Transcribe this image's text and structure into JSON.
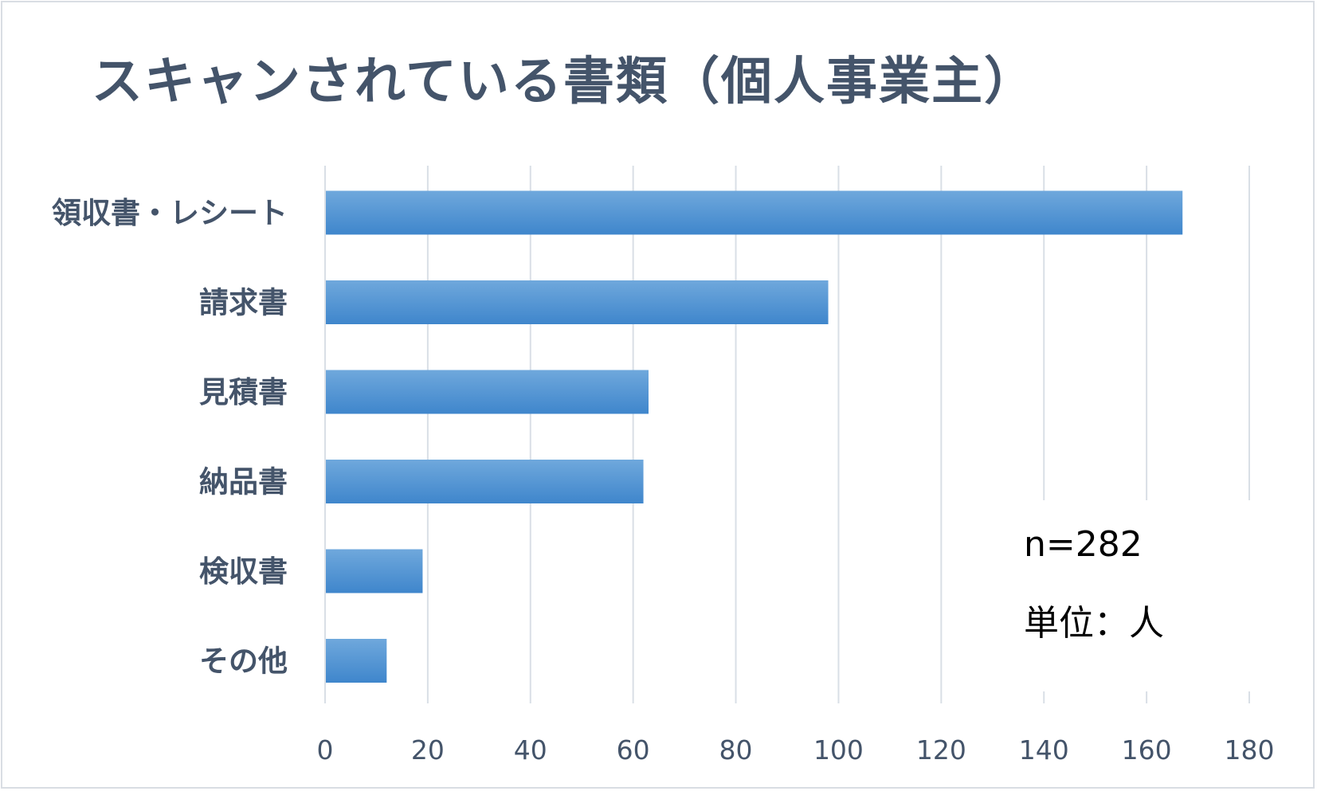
{
  "chart_data": {
    "type": "bar",
    "orientation": "horizontal",
    "title": "スキャンされている書類（個人事業主）",
    "categories": [
      "領収書・レシート",
      "請求書",
      "見積書",
      "納品書",
      "検収書",
      "その他"
    ],
    "values": [
      167,
      98,
      63,
      62,
      19,
      12
    ],
    "xlim": [
      0,
      180
    ],
    "x_ticks": [
      "0",
      "20",
      "40",
      "60",
      "80",
      "100",
      "120",
      "140",
      "160",
      "180"
    ],
    "grid": "vertical",
    "legend": "none",
    "bar_color": "#5b9bd5",
    "annotations": [
      "n=282",
      "単位：人"
    ]
  },
  "colors": {
    "text": "#44546a",
    "grid": "#d9dfe6",
    "bar_top": "#6fa8dc",
    "bar_bottom": "#3f86cc"
  }
}
